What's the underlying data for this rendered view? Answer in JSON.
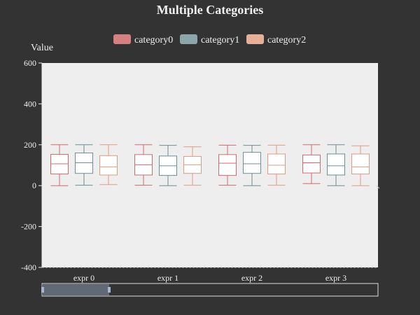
{
  "chart_data": {
    "type": "boxplot",
    "title": "Multiple Categories",
    "xlabel": "",
    "ylabel": "Value",
    "ylim": [
      -400,
      600
    ],
    "yticks": [
      -400,
      -200,
      0,
      200,
      400,
      600
    ],
    "categories": [
      "expr 0",
      "expr 1",
      "expr 2",
      "expr 3"
    ],
    "legend_position": "top-center",
    "grid": false,
    "series": [
      {
        "name": "category0",
        "color": "#d48265",
        "boxes": [
          {
            "min": 0,
            "q1": 57,
            "median": 107,
            "q3": 153,
            "max": 200
          },
          {
            "min": 2,
            "q1": 52,
            "median": 102,
            "q3": 152,
            "max": 200
          },
          {
            "min": 2,
            "q1": 50,
            "median": 110,
            "q3": 152,
            "max": 198
          },
          {
            "min": 10,
            "q1": 62,
            "median": 112,
            "q3": 150,
            "max": 200
          }
        ]
      },
      {
        "name": "category1",
        "color": "#749f83",
        "boxes": [
          {
            "min": 2,
            "q1": 60,
            "median": 112,
            "q3": 160,
            "max": 200
          },
          {
            "min": 0,
            "q1": 50,
            "median": 97,
            "q3": 145,
            "max": 197
          },
          {
            "min": 0,
            "q1": 60,
            "median": 107,
            "q3": 163,
            "max": 197
          },
          {
            "min": 0,
            "q1": 52,
            "median": 97,
            "q3": 155,
            "max": 200
          }
        ]
      },
      {
        "name": "category2",
        "color": "#e9a08a",
        "boxes": [
          {
            "min": 5,
            "q1": 52,
            "median": 92,
            "q3": 147,
            "max": 200
          },
          {
            "min": 2,
            "q1": 60,
            "median": 102,
            "q3": 143,
            "max": 190
          },
          {
            "min": 2,
            "q1": 57,
            "median": 100,
            "q3": 155,
            "max": 198
          },
          {
            "min": 0,
            "q1": 57,
            "median": 92,
            "q3": 155,
            "max": 195
          }
        ]
      }
    ],
    "colors": {
      "background": "#333333",
      "plot_background": "#eeeeee",
      "text": "#eeeeee",
      "category0": "#d68080",
      "category1": "#8aa6ab",
      "category2": "#e7ae98",
      "category0_stroke": "#d16b6b",
      "category1_stroke": "#6f8f96",
      "category2_stroke": "#e29a80"
    },
    "data_zoom": {
      "start_fraction": 0.0,
      "end_fraction": 0.2
    }
  }
}
